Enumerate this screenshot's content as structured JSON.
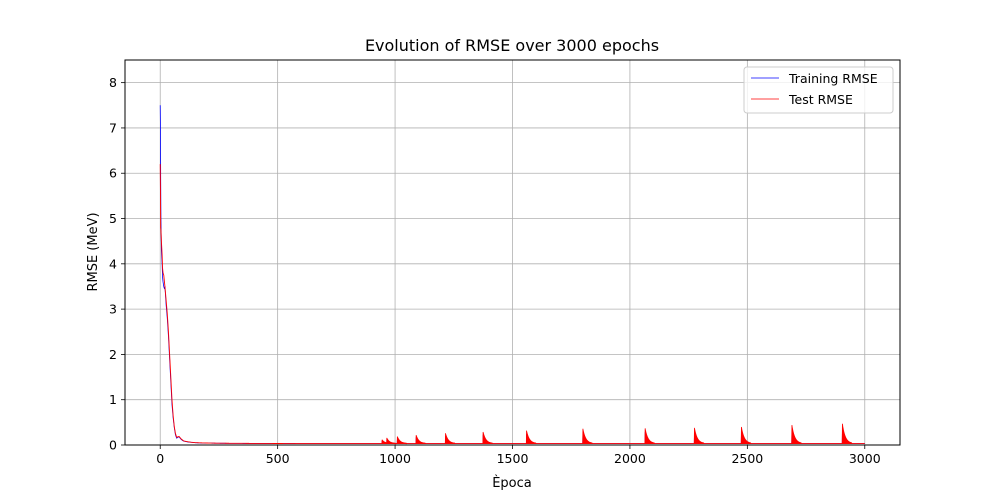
{
  "chart_data": {
    "type": "line",
    "title": "Evolution of RMSE over 3000 epochs",
    "xlabel": "Època",
    "ylabel": "RMSE (MeV)",
    "xlim": [
      -150,
      3150
    ],
    "ylim": [
      0,
      8.5
    ],
    "xticks": [
      0,
      500,
      1000,
      1500,
      2000,
      2500,
      3000
    ],
    "yticks": [
      0,
      1,
      2,
      3,
      4,
      5,
      6,
      7,
      8
    ],
    "grid": true,
    "legend_position": "top-right",
    "spikes": [
      {
        "epoch": 945,
        "height": 0.08
      },
      {
        "epoch": 965,
        "height": 0.12
      },
      {
        "epoch": 1010,
        "height": 0.15
      },
      {
        "epoch": 1090,
        "height": 0.18
      },
      {
        "epoch": 1215,
        "height": 0.22
      },
      {
        "epoch": 1375,
        "height": 0.25
      },
      {
        "epoch": 1560,
        "height": 0.28
      },
      {
        "epoch": 1800,
        "height": 0.32
      },
      {
        "epoch": 2065,
        "height": 0.33
      },
      {
        "epoch": 2275,
        "height": 0.34
      },
      {
        "epoch": 2475,
        "height": 0.36
      },
      {
        "epoch": 2690,
        "height": 0.4
      },
      {
        "epoch": 2905,
        "height": 0.43
      }
    ],
    "series": [
      {
        "name": "Training RMSE",
        "color": "#0000ff",
        "x": [
          0,
          1,
          2,
          3,
          5,
          8,
          10,
          12,
          15,
          18,
          20,
          25,
          30,
          35,
          40,
          45,
          50,
          55,
          60,
          65,
          70,
          75,
          80,
          85,
          90,
          95,
          100,
          110,
          120,
          130,
          150,
          175,
          200,
          250,
          300,
          400,
          500,
          600,
          700,
          800,
          900,
          930,
          950,
          1000,
          1100,
          1200,
          1300,
          1400,
          1500,
          1600,
          1700,
          1800,
          1900,
          2000,
          2100,
          2200,
          2300,
          2400,
          2500,
          2600,
          2700,
          2800,
          2900,
          3000
        ],
        "y": [
          7.5,
          7.0,
          5.8,
          5.0,
          4.3,
          4.0,
          3.7,
          3.6,
          3.5,
          3.45,
          3.5,
          3.1,
          2.8,
          2.4,
          1.9,
          1.4,
          0.9,
          0.6,
          0.38,
          0.22,
          0.15,
          0.17,
          0.18,
          0.15,
          0.12,
          0.1,
          0.085,
          0.075,
          0.065,
          0.06,
          0.05,
          0.045,
          0.042,
          0.038,
          0.036,
          0.034,
          0.032,
          0.031,
          0.03,
          0.03,
          0.03,
          0.03,
          0.03,
          0.03,
          0.03,
          0.03,
          0.03,
          0.03,
          0.03,
          0.03,
          0.03,
          0.03,
          0.03,
          0.03,
          0.03,
          0.03,
          0.03,
          0.03,
          0.03,
          0.03,
          0.03,
          0.03,
          0.03,
          0.03
        ]
      },
      {
        "name": "Test RMSE",
        "color": "#ff0000",
        "x": [
          0,
          1,
          2,
          3,
          5,
          8,
          10,
          12,
          15,
          18,
          20,
          25,
          30,
          35,
          40,
          45,
          50,
          55,
          60,
          65,
          70,
          75,
          80,
          85,
          90,
          95,
          100,
          110,
          120,
          130,
          150,
          175,
          200,
          250,
          300,
          400,
          500,
          600,
          700,
          800,
          900,
          930,
          950,
          1000,
          1100,
          1200,
          1300,
          1400,
          1500,
          1600,
          1700,
          1800,
          1900,
          2000,
          2100,
          2200,
          2300,
          2400,
          2500,
          2600,
          2700,
          2800,
          2900,
          3000
        ],
        "y": [
          6.2,
          5.6,
          4.8,
          4.75,
          4.5,
          4.2,
          3.9,
          3.8,
          3.75,
          3.6,
          3.5,
          3.2,
          2.9,
          2.5,
          2.0,
          1.5,
          1.0,
          0.65,
          0.4,
          0.25,
          0.17,
          0.18,
          0.19,
          0.16,
          0.13,
          0.11,
          0.09,
          0.08,
          0.07,
          0.062,
          0.052,
          0.047,
          0.044,
          0.04,
          0.038,
          0.035,
          0.033,
          0.032,
          0.031,
          0.031,
          0.031,
          0.031,
          0.031,
          0.031,
          0.031,
          0.031,
          0.031,
          0.031,
          0.031,
          0.031,
          0.031,
          0.031,
          0.031,
          0.031,
          0.031,
          0.031,
          0.031,
          0.031,
          0.031,
          0.031,
          0.031,
          0.031,
          0.031,
          0.031
        ]
      }
    ]
  }
}
